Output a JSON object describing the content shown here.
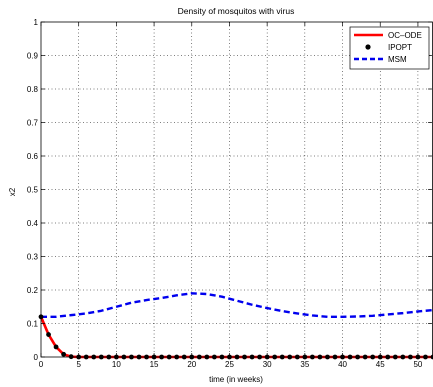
{
  "chart_data": {
    "type": "line",
    "title": "Density of mosquitos with virus",
    "xlabel": "time (in weeks)",
    "ylabel": "x2",
    "xlim": [
      0,
      52
    ],
    "ylim": [
      0,
      1
    ],
    "xticks": [
      0,
      5,
      10,
      15,
      20,
      25,
      30,
      35,
      40,
      45,
      50
    ],
    "yticks": [
      0,
      0.1,
      0.2,
      0.3,
      0.4,
      0.5,
      0.6,
      0.7,
      0.8,
      0.9,
      1
    ],
    "ytick_labels": [
      "0",
      "0.1",
      "0.2",
      "0.3",
      "0.4",
      "0.5",
      "0.6",
      "0.7",
      "0.8",
      "0.9",
      "1"
    ],
    "grid": true,
    "legend_position": "top-right",
    "series": [
      {
        "name": "OC–ODE",
        "style": "solid",
        "color": "#ff0000",
        "x": [
          0,
          1,
          2,
          3,
          4,
          5,
          6,
          8,
          10,
          15,
          20,
          25,
          30,
          35,
          40,
          45,
          50,
          52
        ],
        "y": [
          0.12,
          0.067,
          0.03,
          0.008,
          0.001,
          0,
          0,
          0,
          0,
          0,
          0,
          0,
          0,
          0,
          0,
          0,
          0,
          0
        ]
      },
      {
        "name": "IPOPT",
        "style": "markers",
        "color": "#000000",
        "x": [
          0,
          1,
          2,
          3,
          4,
          5,
          6,
          7,
          8,
          9,
          10,
          11,
          12,
          13,
          14,
          15,
          16,
          17,
          18,
          19,
          20,
          21,
          22,
          23,
          24,
          25,
          26,
          27,
          28,
          29,
          30,
          31,
          32,
          33,
          34,
          35,
          36,
          37,
          38,
          39,
          40,
          41,
          42,
          43,
          44,
          45,
          46,
          47,
          48,
          49,
          50,
          51,
          52
        ],
        "y": [
          0.12,
          0.067,
          0.03,
          0.008,
          0.001,
          0,
          0,
          0,
          0,
          0,
          0,
          0,
          0,
          0,
          0,
          0,
          0,
          0,
          0,
          0,
          0,
          0,
          0,
          0,
          0,
          0,
          0,
          0,
          0,
          0,
          0,
          0,
          0,
          0,
          0,
          0,
          0,
          0,
          0,
          0,
          0,
          0,
          0,
          0,
          0,
          0,
          0,
          0,
          0,
          0,
          0,
          0,
          0
        ]
      },
      {
        "name": "MSM",
        "style": "dashed",
        "color": "#0000ee",
        "x": [
          0,
          2,
          4,
          6,
          8,
          10,
          12,
          14,
          16,
          18,
          20,
          22,
          24,
          26,
          28,
          30,
          32,
          34,
          36,
          38,
          40,
          42,
          44,
          46,
          48,
          50,
          52
        ],
        "y": [
          0.12,
          0.12,
          0.125,
          0.13,
          0.138,
          0.15,
          0.162,
          0.17,
          0.176,
          0.184,
          0.19,
          0.188,
          0.18,
          0.168,
          0.156,
          0.146,
          0.137,
          0.13,
          0.124,
          0.12,
          0.12,
          0.121,
          0.123,
          0.127,
          0.131,
          0.136,
          0.14
        ]
      }
    ]
  }
}
